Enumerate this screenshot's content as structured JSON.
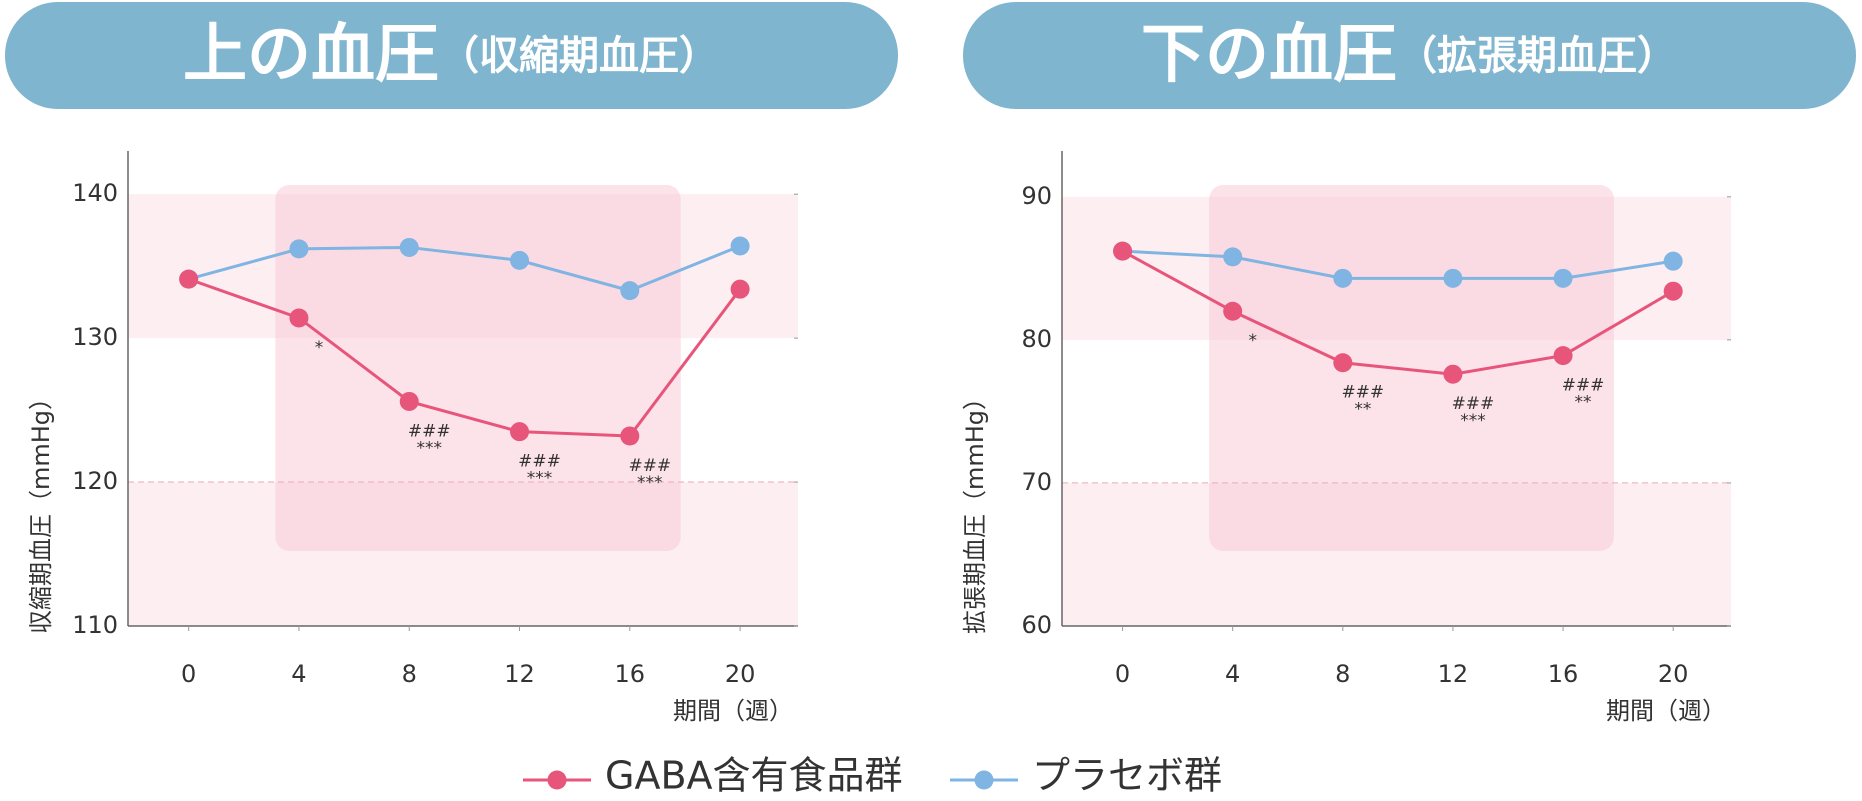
{
  "chart_data": [
    {
      "type": "line",
      "title": "上の血圧",
      "subtitle": "（収縮期血圧）",
      "ylabel": "収縮期血圧（mmHg）",
      "xlabel": "期間（週）",
      "x": [
        0,
        4,
        8,
        12,
        16,
        20
      ],
      "xlim": [
        -2.2,
        22.1
      ],
      "xticks": [
        0,
        4,
        8,
        12,
        16,
        20
      ],
      "ylim": [
        110,
        143
      ],
      "yticks": [
        110,
        120,
        130,
        140
      ],
      "bands": [
        [
          130,
          140
        ],
        [
          110,
          120
        ]
      ],
      "ref_line": 120,
      "series": [
        {
          "name": "GABA含有食品群",
          "color": "#e8557a",
          "values": [
            134.1,
            131.4,
            125.6,
            123.5,
            123.2,
            133.4
          ]
        },
        {
          "name": "プラセボ群",
          "color": "#80b4e2",
          "values": [
            134.1,
            136.2,
            136.3,
            135.4,
            133.3,
            136.4
          ]
        }
      ],
      "annotations": [
        {
          "x": 4,
          "lines": [
            "*"
          ]
        },
        {
          "x": 8,
          "lines": [
            "###",
            "***"
          ]
        },
        {
          "x": 12,
          "lines": [
            "###",
            "***"
          ]
        },
        {
          "x": 16,
          "lines": [
            "###",
            "***"
          ]
        }
      ]
    },
    {
      "type": "line",
      "title": "下の血圧",
      "subtitle": "（拡張期血圧）",
      "ylabel": "拡張期血圧（mmHg）",
      "xlabel": "期間（週）",
      "x": [
        0,
        4,
        8,
        12,
        16,
        20
      ],
      "xlim": [
        -2.2,
        22.1
      ],
      "xticks": [
        0,
        4,
        8,
        12,
        16,
        20
      ],
      "ylim": [
        60,
        93.2
      ],
      "yticks": [
        60,
        70,
        80,
        90
      ],
      "bands": [
        [
          80,
          90
        ],
        [
          60,
          70
        ]
      ],
      "ref_line": 70,
      "series": [
        {
          "name": "GABA含有食品群",
          "color": "#e8557a",
          "values": [
            86.2,
            82.0,
            78.4,
            77.6,
            78.9,
            83.4
          ]
        },
        {
          "name": "プラセボ群",
          "color": "#80b4e2",
          "values": [
            86.2,
            85.8,
            84.3,
            84.3,
            84.3,
            85.5
          ]
        }
      ],
      "annotations": [
        {
          "x": 4,
          "lines": [
            "*"
          ]
        },
        {
          "x": 8,
          "lines": [
            "###",
            "**"
          ]
        },
        {
          "x": 12,
          "lines": [
            "###",
            "***"
          ]
        },
        {
          "x": 16,
          "lines": [
            "###",
            "**"
          ]
        }
      ]
    }
  ]
}
